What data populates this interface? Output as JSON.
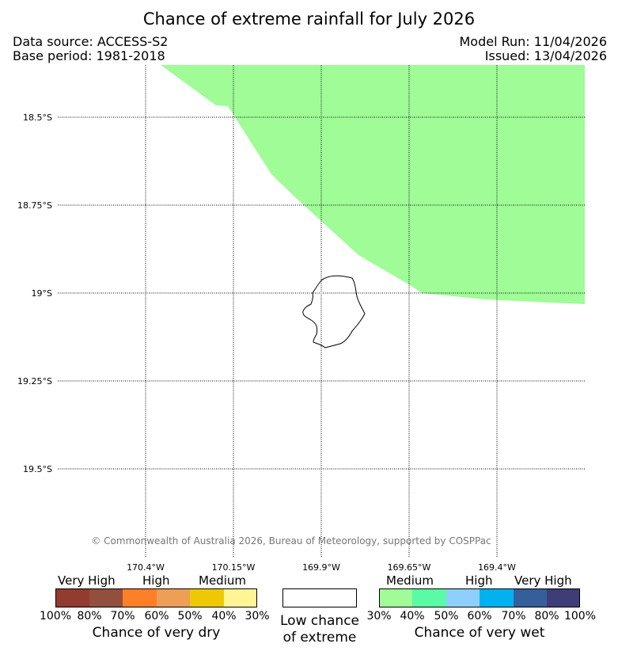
{
  "title": "Chance of extreme rainfall for July 2026",
  "header": {
    "data_source": "Data source: ACCESS-S2",
    "base_period": "Base period: 1981-2018",
    "model_run": "Model Run: 11/04/2026",
    "issued": "Issued: 13/04/2026"
  },
  "map": {
    "lat_labels": [
      "18.5°S",
      "18.75°S",
      "19°S",
      "19.25°S",
      "19.5°S"
    ],
    "lon_labels": [
      "170.4°W",
      "170.15°W",
      "169.9°W",
      "169.65°W",
      "169.4°W"
    ],
    "copyright": "© Commonwealth of Australia 2026, Bureau of Meteorology, supported by COSPPac",
    "wet_region_color": "#9ffc97",
    "wet_region_category": "Medium chance of very wet (30%-40%)"
  },
  "legend": {
    "dry": {
      "headings": [
        "Very High",
        "High",
        "Medium"
      ],
      "ticks": [
        "100%",
        "80%",
        "70%",
        "60%",
        "50%",
        "40%",
        "30%"
      ],
      "colors": [
        "#923c2f",
        "#924f3e",
        "#fd8029",
        "#ed9f55",
        "#eec805",
        "#fff594"
      ],
      "caption": "Chance of very dry"
    },
    "low": {
      "color": "#ffffff",
      "caption_line1": "Low chance",
      "caption_line2": "of extreme"
    },
    "wet": {
      "headings": [
        "Medium",
        "High",
        "Very High"
      ],
      "ticks": [
        "30%",
        "40%",
        "50%",
        "60%",
        "70%",
        "80%",
        "100%"
      ],
      "colors": [
        "#9ffc97",
        "#59fba5",
        "#8fcffb",
        "#00b2f0",
        "#355f9b",
        "#3e3d78"
      ],
      "caption": "Chance of very wet"
    }
  }
}
